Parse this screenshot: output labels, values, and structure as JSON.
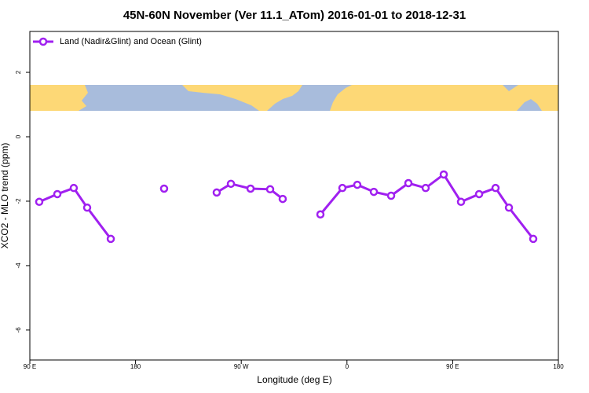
{
  "chart_data": {
    "type": "line",
    "title": "45N-60N November (Ver 11.1_ATom)   2016-01-01 to 2018-12-31",
    "x_label": "Longitude (deg E)",
    "y_label": "XCO2 - MLO trend (ppm)",
    "x": [
      98,
      113.4,
      127.4,
      138.8,
      158.9,
      180,
      204.3,
      230,
      249.1,
      261.2,
      277.9,
      294.6,
      305.3,
      320,
      337.4,
      356.1,
      368.8,
      382.9,
      397.6,
      412.3,
      427,
      442.4,
      457.1,
      472.5,
      486.5,
      497.9,
      518.6
    ],
    "series": [
      {
        "name": "Land (Nadir&Glint) and Ocean (Glint)",
        "color": "#a020f0",
        "values": [
          -2.02,
          -1.78,
          -1.59,
          -2.2,
          -3.17,
          null,
          -1.61,
          null,
          -1.73,
          -1.46,
          -1.61,
          -1.63,
          -1.93,
          null,
          -2.41,
          -1.59,
          -1.49,
          -1.71,
          -1.83,
          -1.44,
          -1.59,
          -1.17,
          -2.02,
          -1.78,
          -1.59,
          -2.2,
          -3.17
        ]
      }
    ],
    "xlim": [
      90,
      540
    ],
    "xticks": [
      {
        "value": 90,
        "label": "90 E"
      },
      180,
      {
        "value": 270,
        "label": "90 W"
      },
      {
        "value": 360,
        "label": "0"
      },
      {
        "value": 450,
        "label": "90 E"
      },
      {
        "value": 540,
        "label": "180"
      }
    ],
    "ylim": [
      -6.93,
      3.27
    ],
    "yticks": [
      2,
      0,
      -2,
      -4,
      -6
    ],
    "grid": false,
    "legend": "top-left"
  }
}
